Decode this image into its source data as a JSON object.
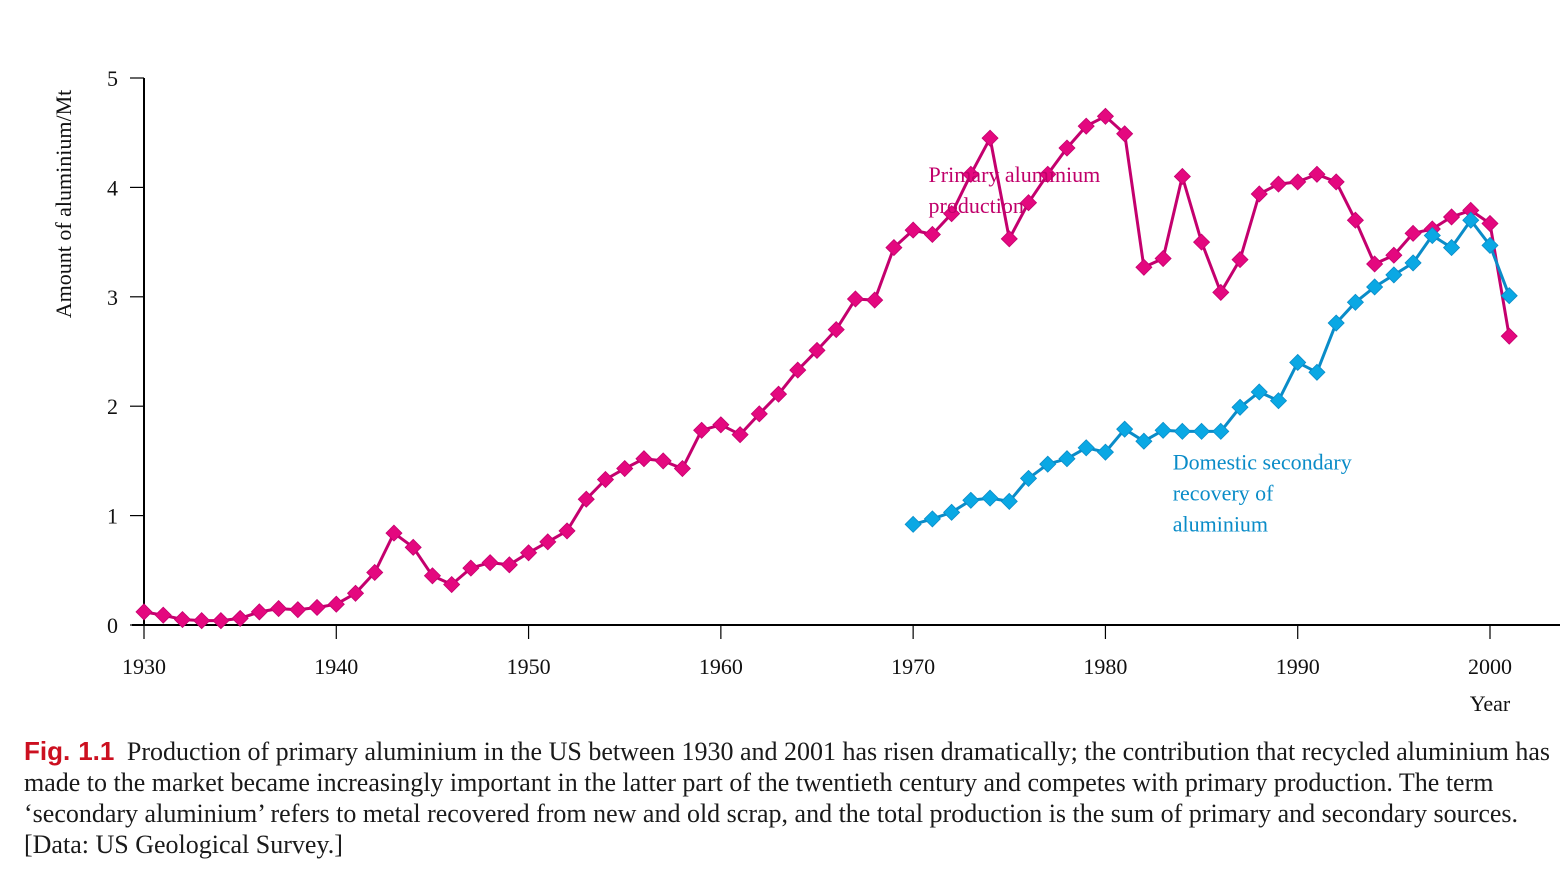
{
  "chart_data": {
    "type": "line",
    "title": "",
    "xlabel": "Year",
    "ylabel": "Amount of aluminium/Mt",
    "xlim": [
      1930,
      2003.5
    ],
    "ylim": [
      0,
      5
    ],
    "grid": false,
    "x_ticks": [
      1930,
      1940,
      1950,
      1960,
      1970,
      1980,
      1990,
      2000
    ],
    "x_tick_labels": [
      "1930",
      "1940",
      "1950",
      "1960",
      "1970",
      "1980",
      "1990",
      "2000"
    ],
    "y_ticks": [
      0,
      1,
      2,
      3,
      4,
      5
    ],
    "y_tick_labels": [
      "0",
      "1",
      "2",
      "3",
      "4",
      "5"
    ],
    "series": [
      {
        "name": "Primary aluminium production",
        "label_lines": [
          "Primary aluminium",
          "production"
        ],
        "label_anchor": {
          "x": 1970.8,
          "y": 4.05
        },
        "marker_color": "#e4087f",
        "line_color": "#c4006e",
        "label_color": "#c0006a",
        "x": [
          1930,
          1931,
          1932,
          1933,
          1934,
          1935,
          1936,
          1937,
          1938,
          1939,
          1940,
          1941,
          1942,
          1943,
          1944,
          1945,
          1946,
          1947,
          1948,
          1949,
          1950,
          1951,
          1952,
          1953,
          1954,
          1955,
          1956,
          1957,
          1958,
          1959,
          1960,
          1961,
          1962,
          1963,
          1964,
          1965,
          1966,
          1967,
          1968,
          1969,
          1970,
          1971,
          1972,
          1973,
          1974,
          1975,
          1976,
          1977,
          1978,
          1979,
          1980,
          1981,
          1982,
          1983,
          1984,
          1985,
          1986,
          1987,
          1988,
          1989,
          1990,
          1991,
          1992,
          1993,
          1994,
          1995,
          1996,
          1997,
          1998,
          1999,
          2000,
          2001
        ],
        "values": [
          0.12,
          0.09,
          0.05,
          0.04,
          0.04,
          0.06,
          0.12,
          0.15,
          0.14,
          0.16,
          0.19,
          0.29,
          0.48,
          0.84,
          0.71,
          0.45,
          0.37,
          0.52,
          0.57,
          0.55,
          0.66,
          0.76,
          0.86,
          1.15,
          1.33,
          1.43,
          1.52,
          1.5,
          1.43,
          1.78,
          1.83,
          1.74,
          1.93,
          2.11,
          2.33,
          2.51,
          2.7,
          2.98,
          2.97,
          3.45,
          3.61,
          3.57,
          3.76,
          4.12,
          4.45,
          3.53,
          3.86,
          4.12,
          4.36,
          4.56,
          4.65,
          4.49,
          3.27,
          3.35,
          4.1,
          3.5,
          3.04,
          3.34,
          3.94,
          4.03,
          4.05,
          4.12,
          4.05,
          3.7,
          3.3,
          3.38,
          3.58,
          3.62,
          3.73,
          3.79,
          3.67,
          2.64
        ]
      },
      {
        "name": "Domestic secondary recovery of aluminium",
        "label_lines": [
          "Domestic secondary",
          "recovery of",
          "aluminium"
        ],
        "label_anchor": {
          "x": 1983.5,
          "y": 1.42
        },
        "marker_color": "#0aa8e4",
        "line_color": "#0a8cc8",
        "label_color": "#0a8cc8",
        "x": [
          1970,
          1971,
          1972,
          1973,
          1974,
          1975,
          1976,
          1977,
          1978,
          1979,
          1980,
          1981,
          1982,
          1983,
          1984,
          1985,
          1986,
          1987,
          1988,
          1989,
          1990,
          1991,
          1992,
          1993,
          1994,
          1995,
          1996,
          1997,
          1998,
          1999,
          2000,
          2001
        ],
        "values": [
          0.92,
          0.97,
          1.03,
          1.14,
          1.16,
          1.13,
          1.34,
          1.47,
          1.52,
          1.62,
          1.58,
          1.79,
          1.68,
          1.78,
          1.77,
          1.77,
          1.77,
          1.99,
          2.13,
          2.05,
          2.4,
          2.31,
          2.76,
          2.95,
          3.09,
          3.2,
          3.31,
          3.56,
          3.45,
          3.7,
          3.47,
          3.01
        ]
      }
    ]
  },
  "caption": {
    "fig_prefix": "Fig.",
    "fig_number": "1.1",
    "text": "Production of primary aluminium in the US between 1930 and 2001 has risen dramatically; the contribution that recycled aluminium has made to the market became increasingly important in the latter part of the twentieth century and competes with primary production. The term ‘secondary aluminium’ refers to metal recovered from new and old scrap, and the total production is the sum of primary and secondary sources. [Data: US Geological Survey.]",
    "prefix_color": "#cc1020"
  }
}
